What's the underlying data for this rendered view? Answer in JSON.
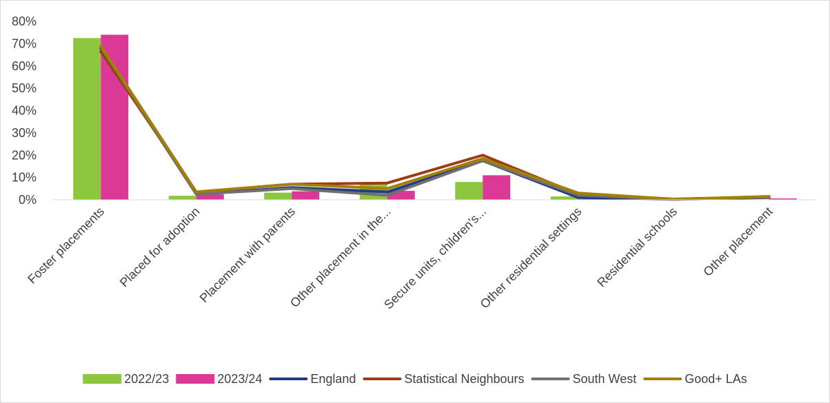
{
  "chart_data": {
    "type": "bar",
    "categories": [
      "Foster placements",
      "Placed for adoption",
      "Placement with parents",
      "Other placement in the...",
      "Secure units, children's...",
      "Other residential settings",
      "Residential schools",
      "Other placement"
    ],
    "y_ticks": [
      "0%",
      "10%",
      "20%",
      "30%",
      "40%",
      "50%",
      "60%",
      "70%",
      "80%"
    ],
    "ylim": [
      0,
      80
    ],
    "grid": false,
    "legend_position": "bottom",
    "bar_series": [
      {
        "name": "2022/23",
        "color": "#8dc63f",
        "values": [
          72.5,
          1.8,
          3.2,
          7.5,
          8.0,
          1.5,
          0.2,
          0.2
        ]
      },
      {
        "name": "2023/24",
        "color": "#da3a96",
        "values": [
          74.0,
          2.5,
          3.8,
          4.0,
          11.0,
          0.3,
          0.2,
          0.6
        ]
      }
    ],
    "line_series": [
      {
        "name": "England",
        "color": "#1f3c88",
        "values": [
          68,
          2.5,
          5.5,
          3.5,
          17.5,
          1.0,
          0.2,
          1.0
        ]
      },
      {
        "name": "Statistical Neighbours",
        "color": "#9e3a14",
        "values": [
          66.5,
          3.5,
          7.0,
          7.5,
          20.0,
          2.5,
          0.3,
          1.2
        ]
      },
      {
        "name": "South West",
        "color": "#707070",
        "values": [
          68.5,
          2.5,
          5.0,
          2.0,
          17.5,
          2.0,
          0.2,
          1.2
        ]
      },
      {
        "name": "Good+ LAs",
        "color": "#a57f00",
        "values": [
          69.0,
          3.5,
          7.0,
          5.0,
          18.5,
          3.0,
          0.3,
          1.5
        ]
      }
    ]
  }
}
